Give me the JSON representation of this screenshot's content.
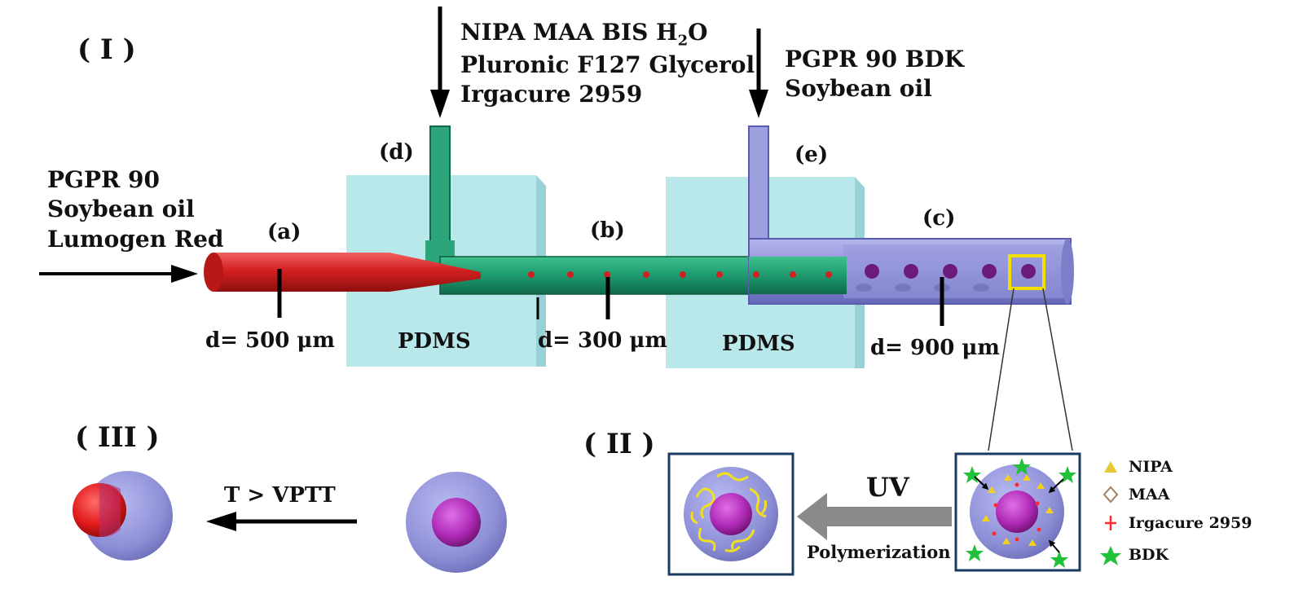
{
  "panels": {
    "I": "( I )",
    "II": "( II )",
    "III": "( III )"
  },
  "inlet_top_1": {
    "line1": {
      "pre": "NIPA  MAA  BIS  H",
      "sub": "2",
      "post": "O"
    },
    "line2": "Pluronic F127   Glycerol",
    "line3": "Irgacure 2959"
  },
  "inlet_top_2": {
    "line1": "PGPR 90   BDK",
    "line2": "Soybean oil"
  },
  "inlet_left": {
    "line1": "PGPR 90",
    "line2": "Soybean oil",
    "line3": "Lumogen Red"
  },
  "channel_labels": {
    "a": "(a)",
    "b": "(b)",
    "c": "(c)",
    "d": "(d)",
    "e": "(e)"
  },
  "diameters": {
    "a": "d= 500 μm",
    "b": "d= 300 μm",
    "c": "d= 900 μm"
  },
  "blocks": {
    "left": "PDMS",
    "right": "PDMS"
  },
  "uv": {
    "label": "UV",
    "caption": "Polymerization"
  },
  "temperature": {
    "label": "T > VPTT"
  },
  "legend": [
    {
      "label": "NIPA",
      "icon": "triangle-icon",
      "color": "#e8c832"
    },
    {
      "label": "MAA",
      "icon": "diamond-icon",
      "color": "#a08060"
    },
    {
      "label": "Irgacure 2959",
      "icon": "cross-icon",
      "color": "#ff2a2a"
    },
    {
      "label": "BDK",
      "icon": "star-icon",
      "color": "#22c13a"
    }
  ],
  "colors": {
    "pdms": "#b9e8ea",
    "red_fluid": "#d42020",
    "green_channel": "#1f9a6e",
    "purple_channel": "#8d8fd6",
    "highlight_box": "#f0e000",
    "droplet_core": "#b02cb8"
  }
}
